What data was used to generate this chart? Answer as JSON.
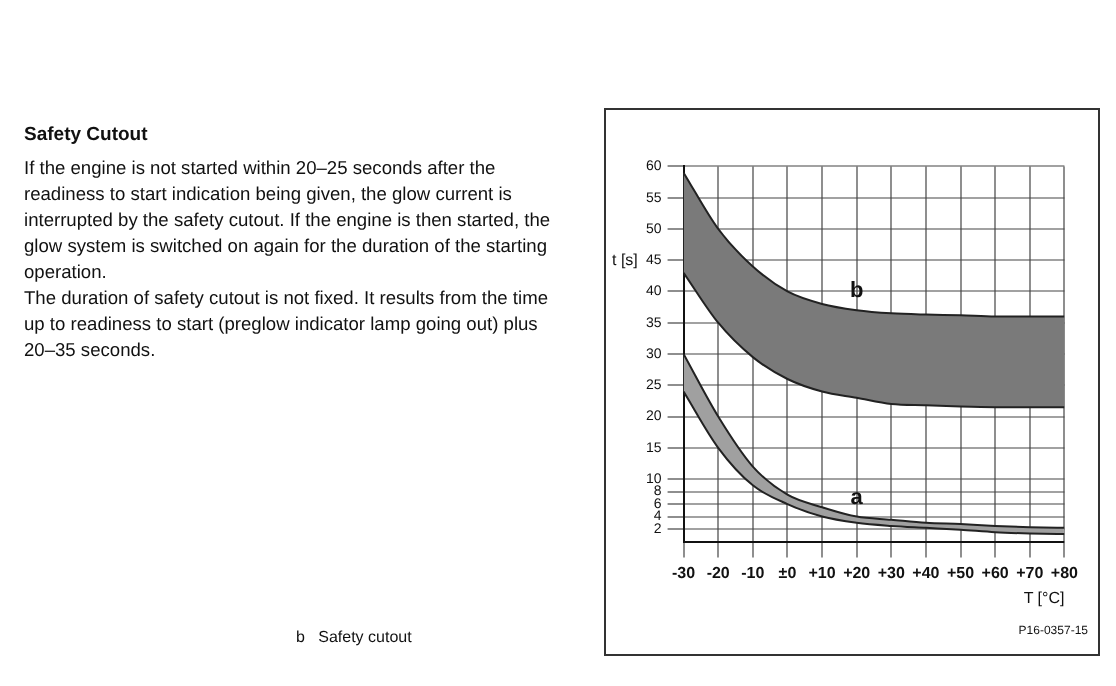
{
  "chart_data": {
    "type": "area",
    "title": "Safety Cutout",
    "subtitle": "If the engine is not started within 20–25 seconds after the readiness to start indication being given, the glow current is interrupted by the safety cutout. If the engine is then started, the glow system is switched on again for the duration of the starting operation.",
    "annotations": [
      "The duration of safety cutout is not fixed. It results from the time up to readiness to start (preglow indicator lamp going out) plus 20–35 seconds.",
      "b   Safety cutout",
      "P16-0357-15"
    ],
    "xlabel": "T [°C]",
    "ylabel": "t [s]",
    "x": [
      -30,
      -20,
      -10,
      0,
      10,
      20,
      30,
      40,
      50,
      60,
      70,
      80
    ],
    "series": [
      {
        "type": "line",
        "color": "#222222",
        "values": [
          43,
          35,
          29.5,
          26,
          24,
          23,
          22,
          21.8,
          21.6,
          21.5,
          21.5,
          21.5
        ]
      },
      {
        "name": "b",
        "color": "#7a7a7a",
        "values": [
          59,
          50,
          44,
          40,
          38,
          37,
          36.5,
          36.3,
          36.2,
          36,
          36,
          36
        ]
      },
      {
        "type": "line",
        "color": "#222222",
        "values": [
          24,
          15,
          9,
          6,
          4,
          3,
          2.5,
          2.2,
          1.9,
          1.5,
          1.3,
          1.2
        ]
      },
      {
        "name": "a",
        "color": "#a0a0a0",
        "values": [
          30,
          20,
          12,
          7.5,
          5.5,
          4,
          3.5,
          3,
          2.8,
          2.5,
          2.3,
          2.2
        ]
      }
    ],
    "xlim": [
      -30,
      80
    ],
    "xticks": [
      -30,
      -20,
      -10,
      {
        "value": 0,
        "label": "±0"
      },
      {
        "value": 10,
        "label": "+10"
      },
      {
        "value": 20,
        "label": "+20"
      },
      {
        "value": 30,
        "label": "+30"
      },
      {
        "value": 40,
        "label": "+40"
      },
      {
        "value": 50,
        "label": "+50"
      },
      {
        "value": 60,
        "label": "+60"
      },
      {
        "value": 70,
        "label": "+70"
      },
      {
        "value": 80,
        "label": "+80"
      }
    ],
    "ylim": [
      0,
      60
    ],
    "yticks": [
      2,
      4,
      6,
      8,
      10,
      15,
      20,
      25,
      30,
      35,
      40,
      45,
      50,
      55,
      60
    ],
    "grid": true,
    "legend": false
  }
}
